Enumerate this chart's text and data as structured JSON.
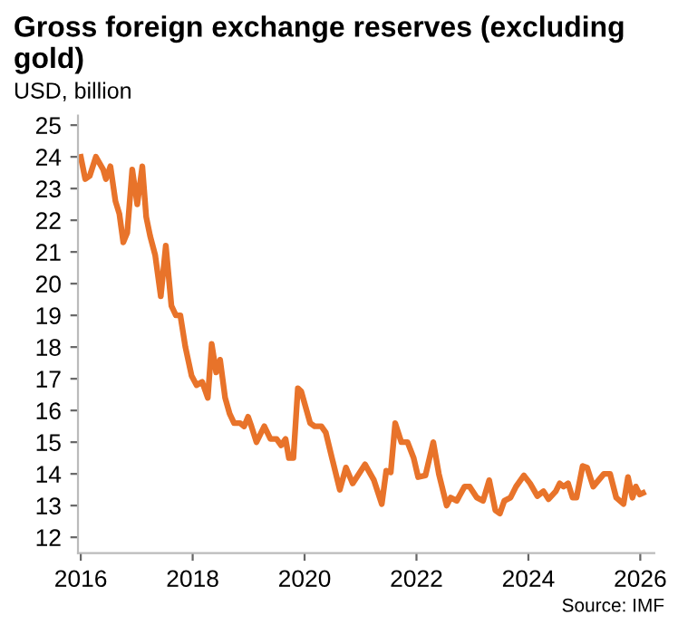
{
  "chart_data": {
    "type": "line",
    "title": "Gross foreign exchange reserves (excluding gold)",
    "ylabel": "USD, billion",
    "annotations": [
      "Source: IMF"
    ],
    "x": [
      2016.0,
      2016.08,
      2016.16,
      2016.27,
      2016.4,
      2016.45,
      2016.53,
      2016.62,
      2016.69,
      2016.76,
      2016.83,
      2016.92,
      2017.01,
      2017.1,
      2017.17,
      2017.24,
      2017.33,
      2017.43,
      2017.52,
      2017.62,
      2017.7,
      2017.78,
      2017.87,
      2017.98,
      2018.07,
      2018.17,
      2018.27,
      2018.34,
      2018.42,
      2018.49,
      2018.58,
      2018.66,
      2018.74,
      2018.85,
      2018.92,
      2018.99,
      2019.05,
      2019.14,
      2019.28,
      2019.39,
      2019.5,
      2019.58,
      2019.66,
      2019.72,
      2019.8,
      2019.88,
      2019.94,
      2020.1,
      2020.18,
      2020.3,
      2020.38,
      2020.49,
      2020.63,
      2020.74,
      2020.86,
      2021.08,
      2021.24,
      2021.38,
      2021.46,
      2021.54,
      2021.62,
      2021.73,
      2021.84,
      2021.95,
      2022.03,
      2022.16,
      2022.3,
      2022.4,
      2022.54,
      2022.61,
      2022.72,
      2022.86,
      2022.95,
      2023.08,
      2023.19,
      2023.3,
      2023.41,
      2023.49,
      2023.57,
      2023.68,
      2023.78,
      2023.92,
      2024.03,
      2024.16,
      2024.27,
      2024.36,
      2024.49,
      2024.56,
      2024.63,
      2024.71,
      2024.79,
      2024.86,
      2024.97,
      2025.05,
      2025.16,
      2025.35,
      2025.46,
      2025.57,
      2025.7,
      2025.78,
      2025.86,
      2025.92,
      2025.99,
      2026.05
    ],
    "series": [
      {
        "color": "#e8732a",
        "values": [
          24.0,
          23.3,
          23.4,
          24.0,
          23.6,
          23.3,
          23.7,
          22.6,
          22.2,
          21.3,
          21.6,
          23.6,
          22.5,
          23.7,
          22.1,
          21.5,
          20.9,
          19.6,
          21.2,
          19.3,
          19.0,
          19.0,
          18.0,
          17.1,
          16.8,
          16.9,
          16.4,
          18.1,
          17.2,
          17.6,
          16.4,
          15.9,
          15.6,
          15.6,
          15.5,
          15.8,
          15.5,
          15.0,
          15.5,
          15.1,
          15.1,
          14.9,
          15.1,
          14.5,
          14.5,
          16.7,
          16.6,
          15.6,
          15.5,
          15.5,
          15.3,
          14.5,
          13.5,
          14.2,
          13.7,
          14.3,
          13.8,
          13.05,
          14.1,
          14.05,
          15.6,
          15.0,
          15.0,
          14.5,
          13.9,
          13.95,
          15.0,
          14.0,
          13.0,
          13.25,
          13.15,
          13.6,
          13.6,
          13.25,
          13.15,
          13.8,
          12.85,
          12.75,
          13.15,
          13.25,
          13.6,
          13.95,
          13.7,
          13.3,
          13.45,
          13.2,
          13.45,
          13.7,
          13.6,
          13.7,
          13.25,
          13.25,
          14.25,
          14.2,
          13.6,
          14.0,
          14.0,
          13.25,
          13.05,
          13.9,
          13.25,
          13.6,
          13.35,
          13.4
        ]
      }
    ],
    "xlim": [
      2015.95,
      2026.25
    ],
    "xticks": [
      2016,
      2018,
      2020,
      2022,
      2024,
      2026
    ],
    "ylim": [
      11.5,
      25.3
    ],
    "yticks": [
      12,
      13,
      14,
      15,
      16,
      17,
      18,
      19,
      20,
      21,
      22,
      23,
      24,
      25
    ],
    "grid": false,
    "legend": false,
    "line_style": "solid",
    "marker": "none"
  }
}
